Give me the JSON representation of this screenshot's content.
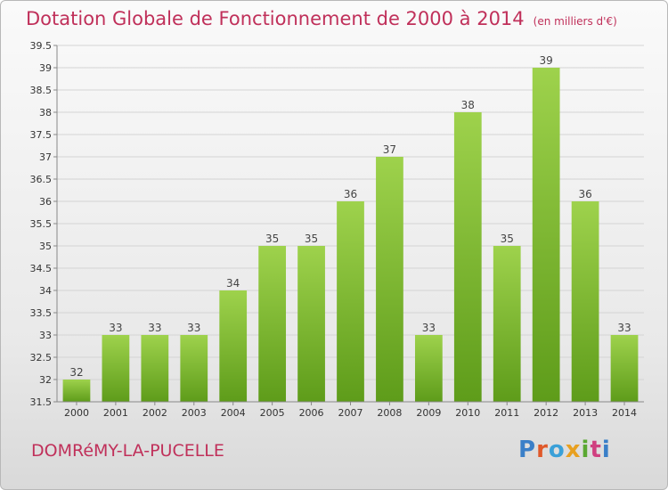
{
  "title": "Dotation Globale de Fonctionnement de 2000 à 2014",
  "title_unit": "(en milliers d'€)",
  "place_name": "DOMRéMY-LA-PUCELLE",
  "logo": {
    "text": "Proxiti",
    "letter_colors": [
      "#3a7fc8",
      "#e0592a",
      "#3aa0d8",
      "#e8a020",
      "#5aa832",
      "#d04080",
      "#3a7fc8"
    ]
  },
  "colors": {
    "title": "#c0305a",
    "bar_top": "#9ed24c",
    "bar_bottom": "#5e9c1a"
  },
  "chart_data": {
    "type": "bar",
    "categories": [
      "2000",
      "2001",
      "2002",
      "2003",
      "2004",
      "2005",
      "2006",
      "2007",
      "2008",
      "2009",
      "2010",
      "2011",
      "2012",
      "2013",
      "2014"
    ],
    "values": [
      32,
      33,
      33,
      33,
      34,
      35,
      35,
      36,
      37,
      33,
      38,
      35,
      39,
      36,
      33
    ],
    "ylim": [
      31.5,
      39.5
    ],
    "yticks": [
      "31.5",
      "32",
      "32.5",
      "33",
      "33.5",
      "34",
      "34.5",
      "35",
      "35.5",
      "36",
      "36.5",
      "37",
      "37.5",
      "38",
      "38.5",
      "39",
      "39.5"
    ],
    "grid": true,
    "data_labels": true
  }
}
